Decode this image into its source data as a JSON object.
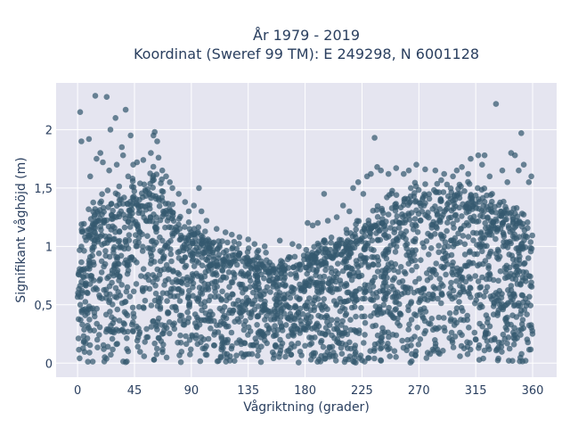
{
  "chart_data": {
    "type": "scatter",
    "title_line1": "År 1979 - 2019",
    "title_line2": "Koordinat (Sweref 99 TM): E 249298, N 6001128",
    "xlabel": "Vågriktning (grader)",
    "ylabel": "Signifikant våghöjd (m)",
    "xlim": [
      -17,
      379
    ],
    "ylim": [
      -0.12,
      2.4
    ],
    "x_ticks": [
      0,
      45,
      90,
      135,
      180,
      225,
      270,
      315,
      360
    ],
    "x_tick_labels": [
      "0",
      "45",
      "90",
      "135",
      "180",
      "225",
      "270",
      "315",
      "360"
    ],
    "y_ticks": [
      0,
      0.5,
      1,
      1.5,
      2
    ],
    "y_tick_labels": [
      "0",
      "0,5",
      "1",
      "1,5",
      "2"
    ],
    "grid": true,
    "plot_bgcolor": "#e5e5f0",
    "marker_color": "#34596f",
    "envelope": {
      "x": [
        0,
        10,
        20,
        30,
        40,
        45,
        50,
        55,
        60,
        65,
        70,
        80,
        90,
        100,
        110,
        120,
        130,
        140,
        150,
        160,
        170,
        180,
        190,
        200,
        210,
        220,
        230,
        240,
        250,
        260,
        270,
        280,
        290,
        300,
        310,
        320,
        330,
        340,
        350,
        360
      ],
      "y": [
        1.05,
        1.25,
        1.35,
        1.42,
        1.45,
        1.5,
        1.55,
        1.6,
        1.58,
        1.52,
        1.4,
        1.25,
        1.15,
        1.08,
        1.02,
        0.97,
        0.95,
        0.9,
        0.88,
        0.85,
        0.85,
        0.9,
        0.95,
        1.0,
        1.05,
        1.12,
        1.2,
        1.3,
        1.38,
        1.42,
        1.45,
        1.46,
        1.47,
        1.48,
        1.45,
        1.42,
        1.38,
        1.33,
        1.25,
        1.15
      ]
    },
    "outliers": [
      [
        2,
        2.15
      ],
      [
        14,
        2.29
      ],
      [
        23,
        2.28
      ],
      [
        38,
        2.17
      ],
      [
        30,
        2.1
      ],
      [
        42,
        1.95
      ],
      [
        3,
        1.9
      ],
      [
        9,
        1.92
      ],
      [
        26,
        2.0
      ],
      [
        35,
        1.85
      ],
      [
        31,
        1.7
      ],
      [
        10,
        1.6
      ],
      [
        15,
        1.75
      ],
      [
        18,
        1.8
      ],
      [
        20,
        1.72
      ],
      [
        25,
        1.65
      ],
      [
        36,
        1.78
      ],
      [
        40,
        1.6
      ],
      [
        44,
        1.7
      ],
      [
        47,
        1.72
      ],
      [
        52,
        1.74
      ],
      [
        58,
        1.8
      ],
      [
        60,
        1.95
      ],
      [
        61,
        1.98
      ],
      [
        63,
        1.9
      ],
      [
        64,
        1.76
      ],
      [
        67,
        1.65
      ],
      [
        70,
        1.6
      ],
      [
        73,
        1.55
      ],
      [
        75,
        1.5
      ],
      [
        80,
        1.45
      ],
      [
        85,
        1.38
      ],
      [
        88,
        1.3
      ],
      [
        92,
        1.35
      ],
      [
        96,
        1.5
      ],
      [
        98,
        1.3
      ],
      [
        102,
        1.22
      ],
      [
        110,
        1.15
      ],
      [
        117,
        1.12
      ],
      [
        122,
        1.1
      ],
      [
        128,
        1.08
      ],
      [
        135,
        1.06
      ],
      [
        140,
        1.02
      ],
      [
        148,
        1.0
      ],
      [
        160,
        1.05
      ],
      [
        170,
        1.02
      ],
      [
        175,
        1.0
      ],
      [
        182,
        1.2
      ],
      [
        186,
        1.18
      ],
      [
        190,
        1.2
      ],
      [
        195,
        1.45
      ],
      [
        198,
        1.22
      ],
      [
        205,
        1.25
      ],
      [
        210,
        1.35
      ],
      [
        215,
        1.3
      ],
      [
        218,
        1.5
      ],
      [
        222,
        1.55
      ],
      [
        226,
        1.45
      ],
      [
        229,
        1.6
      ],
      [
        232,
        1.62
      ],
      [
        235,
        1.93
      ],
      [
        237,
        1.68
      ],
      [
        240,
        1.65
      ],
      [
        246,
        1.62
      ],
      [
        252,
        1.67
      ],
      [
        258,
        1.62
      ],
      [
        262,
        1.65
      ],
      [
        268,
        1.7
      ],
      [
        275,
        1.66
      ],
      [
        283,
        1.65
      ],
      [
        290,
        1.62
      ],
      [
        297,
        1.6
      ],
      [
        300,
        1.65
      ],
      [
        304,
        1.68
      ],
      [
        309,
        1.62
      ],
      [
        311,
        1.75
      ],
      [
        317,
        1.78
      ],
      [
        320,
        1.7
      ],
      [
        322,
        1.78
      ],
      [
        326,
        1.6
      ],
      [
        328,
        1.45
      ],
      [
        331,
        2.22
      ],
      [
        336,
        1.65
      ],
      [
        340,
        1.55
      ],
      [
        343,
        1.8
      ],
      [
        346,
        1.78
      ],
      [
        349,
        1.65
      ],
      [
        351,
        1.97
      ],
      [
        353,
        1.7
      ],
      [
        357,
        1.55
      ],
      [
        359,
        1.6
      ]
    ]
  }
}
